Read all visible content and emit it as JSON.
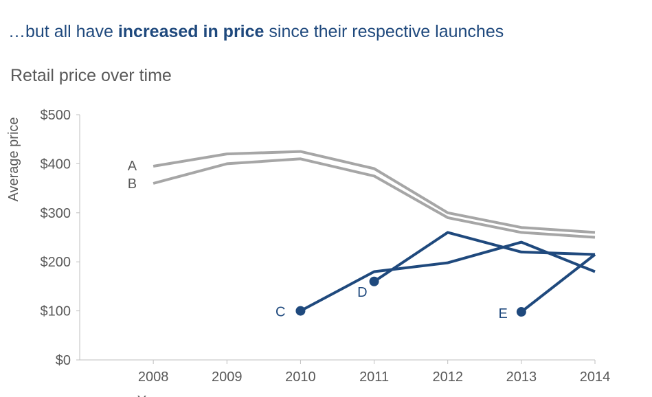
{
  "headline": {
    "prefix": "…but all have ",
    "emphasis": "increased in price",
    "suffix": " since their respective launches"
  },
  "colors": {
    "gray_series": "#a6a6a6",
    "blue_series": "#1f497d",
    "axis_text": "#595959",
    "axis_line": "#bfbfbf"
  },
  "chart_data": {
    "type": "line",
    "title": "Retail price over time",
    "xlabel": "Year",
    "ylabel": "Average price",
    "x": [
      2008,
      2009,
      2010,
      2011,
      2012,
      2013,
      2014
    ],
    "xlim": [
      2007,
      2014
    ],
    "ylim": [
      0,
      500
    ],
    "yticks": [
      0,
      100,
      200,
      300,
      400,
      500
    ],
    "ytick_labels": [
      "$0",
      "$100",
      "$200",
      "$300",
      "$400",
      "$500"
    ],
    "xtick_labels": [
      "2008",
      "2009",
      "2010",
      "2011",
      "2012",
      "2013",
      "2014"
    ],
    "grid": false,
    "series": [
      {
        "name": "A",
        "group": "gray",
        "x": [
          2008,
          2009,
          2010,
          2011,
          2012,
          2013,
          2014
        ],
        "values": [
          395,
          420,
          425,
          390,
          300,
          270,
          260
        ]
      },
      {
        "name": "B",
        "group": "gray",
        "x": [
          2008,
          2009,
          2010,
          2011,
          2012,
          2013,
          2014
        ],
        "values": [
          360,
          400,
          410,
          375,
          290,
          260,
          250
        ]
      },
      {
        "name": "C",
        "group": "blue",
        "x": [
          2010,
          2011,
          2012,
          2013,
          2014
        ],
        "values": [
          100,
          180,
          198,
          240,
          180
        ]
      },
      {
        "name": "D",
        "group": "blue",
        "x": [
          2011,
          2012,
          2013,
          2014
        ],
        "values": [
          160,
          260,
          220,
          215
        ]
      },
      {
        "name": "E",
        "group": "blue",
        "x": [
          2013,
          2014
        ],
        "values": [
          98,
          215
        ]
      }
    ]
  }
}
